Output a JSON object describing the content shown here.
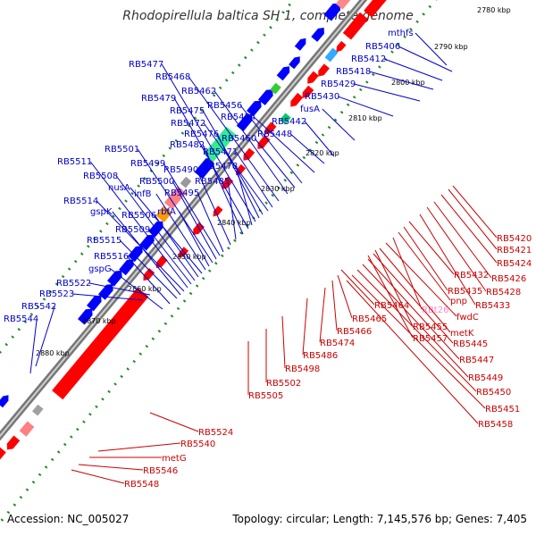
{
  "title": "Rhodopirellula baltica SH 1, complete genome",
  "footer": {
    "accession": "Accession: NC_005027",
    "stats": "Topology: circular; Length: 7,145,576 bp; Genes: 7,405"
  },
  "colors": {
    "plus_strand": "#0000ff",
    "minus_strand": "#ff0000",
    "plus_label": "#0000cc",
    "minus_label": "#cc0000",
    "backbone": "#777777",
    "tick": "#228b22"
  },
  "ticks": [
    "2780 kbp",
    "2790 kbp",
    "2800 kbp",
    "2810 kbp",
    "2820 kbp",
    "2830 kbp",
    "2840 kbp",
    "2850 kbp",
    "2860 kbp",
    "2870 kbp",
    "2880 kbp"
  ],
  "upper_labels": [
    "mthfs",
    "RB5406",
    "RB5412",
    "RB5418",
    "RB5429",
    "RB5430",
    "fusA",
    "RB5442",
    "RB5448",
    "RB5454",
    "RB5456",
    "RB5460",
    "RB5462",
    "RB5468",
    "RB5471",
    "RB5472",
    "RB5475",
    "RB5476",
    "RB5477",
    "RB5478",
    "RB5479",
    "RB5482",
    "RB5485",
    "RB5490",
    "RB5495",
    "RB5499",
    "RB5500",
    "RB5501",
    "rbfA",
    "infB",
    "nusA",
    "RB5506",
    "RB5508",
    "RB5509",
    "RB5511",
    "RB5514",
    "gspK",
    "RB5515",
    "RB5516",
    "gspG",
    "RB5522",
    "RB5523",
    "RB5542",
    "RB5544"
  ],
  "lower_labels": [
    "RB5420",
    "RB5421",
    "RB5424",
    "RB5426",
    "RB5428",
    "RB5432",
    "RB5433",
    "RB5435",
    "pnp",
    "RBt26",
    "fwdC",
    "metK",
    "RB5445",
    "RB5447",
    "RB5449",
    "RB5450",
    "RB5451",
    "RB5455",
    "RB5457",
    "RB5458",
    "RB5464",
    "RB5465",
    "RB5466",
    "RB5474",
    "RB5486",
    "RB5498",
    "RB5502",
    "RB5505",
    "RB5524",
    "RB5540",
    "metG",
    "RB5546",
    "RB5548"
  ]
}
